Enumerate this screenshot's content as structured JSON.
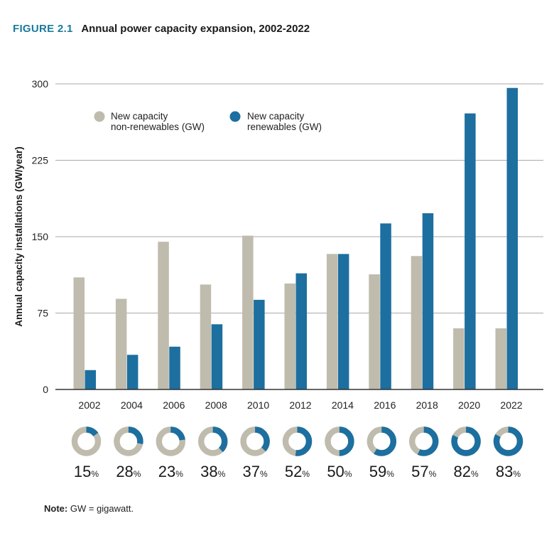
{
  "figure": {
    "number": "FIGURE 2.1",
    "title": "Annual power capacity expansion, 2002-2022"
  },
  "note": {
    "label": "Note:",
    "text": " GW = gigawatt."
  },
  "colors": {
    "non_renewable": "#bfbcae",
    "renewable": "#1d6f9f",
    "grid": "#aaaaaa",
    "axis": "#333333",
    "accent": "#1a7a9c"
  },
  "chart_data": {
    "type": "bar",
    "title": "Annual power capacity expansion, 2002-2022",
    "xlabel": "",
    "ylabel": "Annual capacity installations (GW/year)",
    "ylim": [
      0,
      300
    ],
    "yticks": [
      0,
      75,
      150,
      225,
      300
    ],
    "grid": true,
    "legend_position": "top-left",
    "categories": [
      "2002",
      "2004",
      "2006",
      "2008",
      "2010",
      "2012",
      "2014",
      "2016",
      "2018",
      "2020",
      "2022"
    ],
    "series": [
      {
        "name": "New capacity non-renewables (GW)",
        "legend_lines": [
          "New capacity",
          "non-renewables (GW)"
        ],
        "color": "#bfbcae",
        "values": [
          110,
          89,
          145,
          103,
          151,
          104,
          133,
          113,
          131,
          60,
          60
        ]
      },
      {
        "name": "New capacity renewables (GW)",
        "legend_lines": [
          "New capacity",
          "renewables (GW)"
        ],
        "color": "#1d6f9f",
        "values": [
          19,
          34,
          42,
          64,
          88,
          114,
          133,
          163,
          173,
          271,
          296
        ]
      }
    ],
    "renewable_share": {
      "percent_sign": "%",
      "values": [
        15,
        28,
        23,
        38,
        37,
        52,
        50,
        59,
        57,
        82,
        83
      ]
    }
  }
}
